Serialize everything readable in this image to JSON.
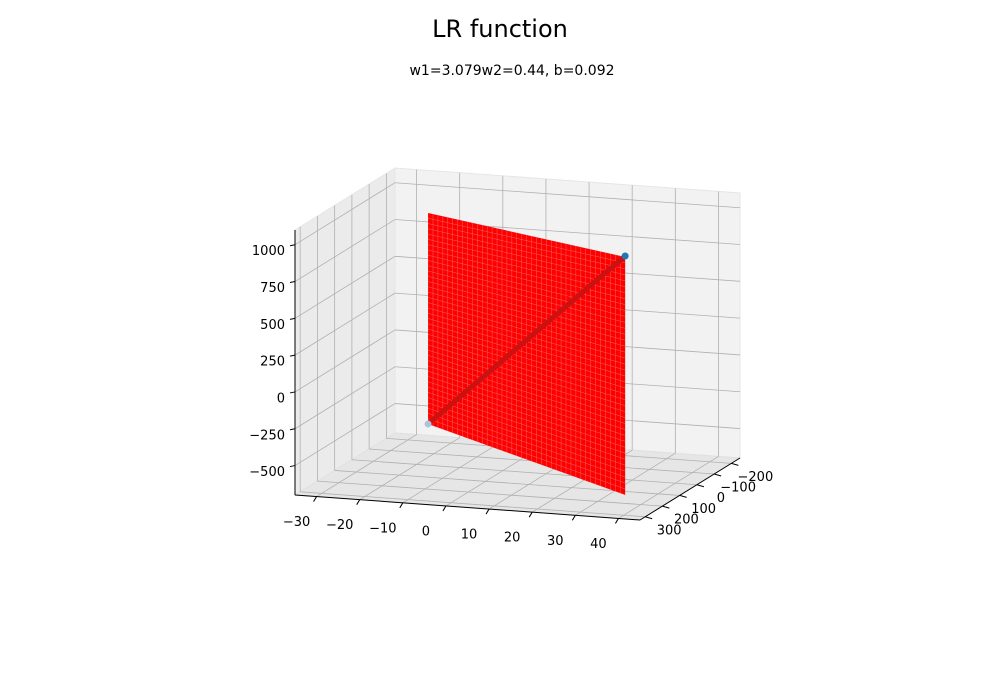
{
  "chart_data": {
    "type": "surface3d",
    "title": "LR function",
    "subtitle": "w1=3.079w2=0.44, b=0.092",
    "xlim": [
      -35,
      45
    ],
    "xticks": [
      {
        "value": -30,
        "label": "−30"
      },
      {
        "value": -20,
        "label": "−20"
      },
      {
        "value": -10,
        "label": "−10"
      },
      0,
      10,
      20,
      30,
      40
    ],
    "ylim": [
      -250,
      330
    ],
    "yticks": [
      {
        "value": -200,
        "label": "−200"
      },
      {
        "value": -100,
        "label": "−100"
      },
      0,
      100,
      200,
      300
    ],
    "zlim": [
      -700,
      1100
    ],
    "zticks": [
      {
        "value": -500,
        "label": "−500"
      },
      {
        "value": -250,
        "label": "−250"
      },
      0,
      250,
      500,
      750,
      1000
    ],
    "grid": true,
    "surface": {
      "color": "#ff0000",
      "x": [
        -11.1,
        34.6
      ],
      "y": 156,
      "z": [
        [
          -293,
          -678
        ],
        [
          1140,
          938
        ]
      ]
    },
    "line": {
      "color": "#cc1111",
      "x": [
        -11.1,
        34.6
      ],
      "y": [
        156,
        156
      ],
      "z": [
        -293,
        945
      ]
    },
    "points": {
      "colors": [
        "#a9c4dc",
        "#1f77b4"
      ],
      "x": [
        -11.1,
        34.6
      ],
      "y": [
        156,
        156
      ],
      "z": [
        -293,
        945
      ]
    }
  }
}
